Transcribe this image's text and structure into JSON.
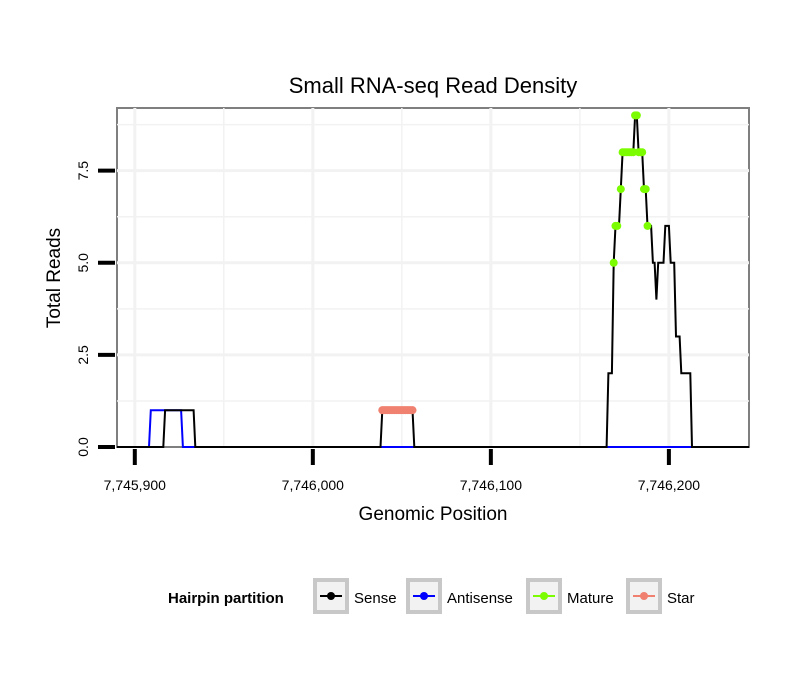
{
  "chart_data": {
    "type": "line",
    "title": "Small RNA-seq Read Density",
    "xlabel": "Genomic Position",
    "ylabel": "Total Reads",
    "xlim": [
      7745890,
      7746245
    ],
    "ylim": [
      0,
      9.2
    ],
    "x_ticks": [
      7745900,
      7746000,
      7746100,
      7746200
    ],
    "x_tick_labels": [
      "7,745,900",
      "7,746,000",
      "7,746,100",
      "7,746,200"
    ],
    "y_ticks": [
      0,
      2.5,
      5,
      7.5
    ],
    "y_tick_labels": [
      "0.0",
      "2.5",
      "5.0",
      "7.5"
    ],
    "grid": true,
    "legend_position": "bottom",
    "legend_title": "Hairpin partition",
    "series": [
      {
        "name": "Sense",
        "color": "#000000",
        "style": "line",
        "points": [
          [
            7745890,
            0
          ],
          [
            7745916,
            0
          ],
          [
            7745917,
            1
          ],
          [
            7745933,
            1
          ],
          [
            7745934,
            0
          ],
          [
            7746038,
            0
          ],
          [
            7746039,
            1
          ],
          [
            7746056,
            1
          ],
          [
            7746057,
            0
          ],
          [
            7746165,
            0
          ],
          [
            7746166,
            2
          ],
          [
            7746168,
            2
          ],
          [
            7746169,
            5
          ],
          [
            7746170,
            6
          ],
          [
            7746172,
            6
          ],
          [
            7746173,
            7
          ],
          [
            7746174,
            8
          ],
          [
            7746180,
            8
          ],
          [
            7746181,
            9
          ],
          [
            7746182,
            9
          ],
          [
            7746183,
            8
          ],
          [
            7746185,
            8
          ],
          [
            7746186,
            7
          ],
          [
            7746187,
            7
          ],
          [
            7746188,
            6
          ],
          [
            7746190,
            6
          ],
          [
            7746191,
            5
          ],
          [
            7746192,
            5
          ],
          [
            7746193,
            4
          ],
          [
            7746194,
            5
          ],
          [
            7746197,
            5
          ],
          [
            7746198,
            6
          ],
          [
            7746200,
            6
          ],
          [
            7746201,
            5
          ],
          [
            7746203,
            5
          ],
          [
            7746204,
            3
          ],
          [
            7746206,
            3
          ],
          [
            7746207,
            2
          ],
          [
            7746212,
            2
          ],
          [
            7746213,
            0
          ],
          [
            7746245,
            0
          ]
        ]
      },
      {
        "name": "Antisense",
        "color": "#0000ff",
        "style": "line",
        "points": [
          [
            7745890,
            0
          ],
          [
            7745908,
            0
          ],
          [
            7745909,
            1
          ],
          [
            7745926,
            1
          ],
          [
            7745927,
            0
          ],
          [
            7746245,
            0
          ]
        ]
      },
      {
        "name": "Mature",
        "color": "#7cfc00",
        "style": "points",
        "points": [
          [
            7746169,
            5
          ],
          [
            7746170,
            6
          ],
          [
            7746171,
            6
          ],
          [
            7746173,
            7
          ],
          [
            7746174,
            8
          ],
          [
            7746175,
            8
          ],
          [
            7746176,
            8
          ],
          [
            7746177,
            8
          ],
          [
            7746178,
            8
          ],
          [
            7746179,
            8
          ],
          [
            7746180,
            8
          ],
          [
            7746181,
            9
          ],
          [
            7746182,
            9
          ],
          [
            7746183,
            8
          ],
          [
            7746184,
            8
          ],
          [
            7746185,
            8
          ],
          [
            7746186,
            7
          ],
          [
            7746187,
            7
          ],
          [
            7746188,
            6
          ]
        ]
      },
      {
        "name": "Star",
        "color": "#f08070",
        "style": "points",
        "points": [
          [
            7746039,
            1
          ],
          [
            7746040,
            1
          ],
          [
            7746041,
            1
          ],
          [
            7746042,
            1
          ],
          [
            7746043,
            1
          ],
          [
            7746044,
            1
          ],
          [
            7746045,
            1
          ],
          [
            7746046,
            1
          ],
          [
            7746047,
            1
          ],
          [
            7746048,
            1
          ],
          [
            7746049,
            1
          ],
          [
            7746050,
            1
          ],
          [
            7746051,
            1
          ],
          [
            7746052,
            1
          ],
          [
            7746053,
            1
          ],
          [
            7746054,
            1
          ],
          [
            7746055,
            1
          ],
          [
            7746056,
            1
          ]
        ]
      }
    ]
  }
}
